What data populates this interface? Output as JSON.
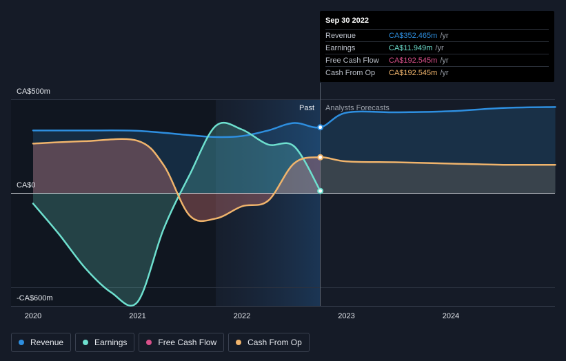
{
  "chart_data": {
    "type": "line",
    "y_ticks": [
      "CA$500m",
      "CA$0",
      "-CA$600m"
    ],
    "x_ticks": [
      "2020",
      "2021",
      "2022",
      "2023",
      "2024"
    ],
    "ylim": [
      -600,
      500
    ],
    "past_label": "Past",
    "forecast_label": "Analysts Forecasts",
    "series": [
      {
        "name": "Revenue",
        "color": "#2e8fe0",
        "points": [
          [
            2020.0,
            335
          ],
          [
            2020.5,
            335
          ],
          [
            2021.0,
            333
          ],
          [
            2021.5,
            310
          ],
          [
            2021.75,
            300
          ],
          [
            2022.0,
            305
          ],
          [
            2022.25,
            335
          ],
          [
            2022.5,
            375
          ],
          [
            2022.75,
            352
          ],
          [
            2023.0,
            430
          ],
          [
            2023.5,
            432
          ],
          [
            2024.0,
            438
          ],
          [
            2024.5,
            455
          ],
          [
            2025.0,
            460
          ]
        ]
      },
      {
        "name": "Earnings",
        "color": "#6ee0cf",
        "points": [
          [
            2020.0,
            -55
          ],
          [
            2020.25,
            -220
          ],
          [
            2020.5,
            -400
          ],
          [
            2020.75,
            -530
          ],
          [
            2021.0,
            -580
          ],
          [
            2021.25,
            -190
          ],
          [
            2021.5,
            100
          ],
          [
            2021.75,
            360
          ],
          [
            2022.0,
            340
          ],
          [
            2022.25,
            260
          ],
          [
            2022.5,
            250
          ],
          [
            2022.75,
            12
          ]
        ]
      },
      {
        "name": "Free Cash Flow",
        "color": "#d8508a",
        "points": [
          [
            2020.0,
            265
          ],
          [
            2020.5,
            278
          ],
          [
            2021.0,
            280
          ],
          [
            2021.25,
            150
          ],
          [
            2021.5,
            -120
          ],
          [
            2021.75,
            -135
          ],
          [
            2022.0,
            -70
          ],
          [
            2022.25,
            -40
          ],
          [
            2022.5,
            160
          ],
          [
            2022.75,
            192
          ]
        ]
      },
      {
        "name": "Cash From Op",
        "color": "#f0b46c",
        "points": [
          [
            2020.0,
            265
          ],
          [
            2020.5,
            278
          ],
          [
            2021.0,
            280
          ],
          [
            2021.25,
            150
          ],
          [
            2021.5,
            -120
          ],
          [
            2021.75,
            -135
          ],
          [
            2022.0,
            -70
          ],
          [
            2022.25,
            -40
          ],
          [
            2022.5,
            160
          ],
          [
            2022.75,
            192
          ],
          [
            2023.0,
            170
          ],
          [
            2023.5,
            165
          ],
          [
            2024.0,
            158
          ],
          [
            2024.5,
            152
          ],
          [
            2025.0,
            152
          ]
        ]
      }
    ],
    "grid": true
  },
  "tooltip": {
    "date": "Sep 30 2022",
    "rows": [
      {
        "name": "Revenue",
        "value": "CA$352.465m",
        "unit": "/yr",
        "color": "#2e8fe0"
      },
      {
        "name": "Earnings",
        "value": "CA$11.949m",
        "unit": "/yr",
        "color": "#6ee0cf"
      },
      {
        "name": "Free Cash Flow",
        "value": "CA$192.545m",
        "unit": "/yr",
        "color": "#d8508a"
      },
      {
        "name": "Cash From Op",
        "value": "CA$192.545m",
        "unit": "/yr",
        "color": "#f0b46c"
      }
    ]
  },
  "legend": [
    {
      "label": "Revenue",
      "color": "#2e8fe0"
    },
    {
      "label": "Earnings",
      "color": "#6ee0cf"
    },
    {
      "label": "Free Cash Flow",
      "color": "#d8508a"
    },
    {
      "label": "Cash From Op",
      "color": "#f0b46c"
    }
  ]
}
